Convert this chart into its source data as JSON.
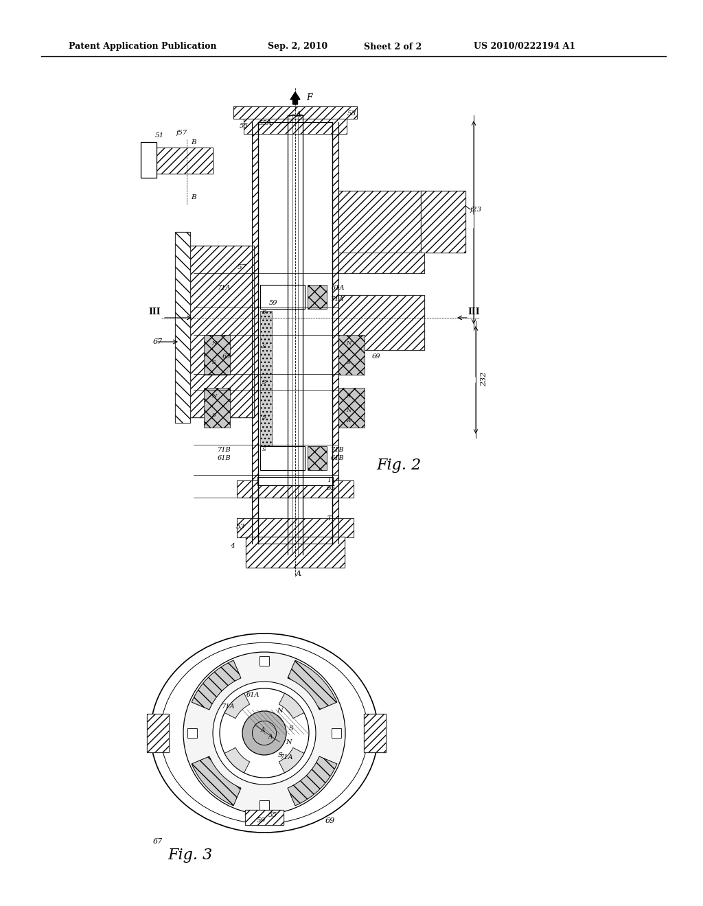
{
  "bg_color": "#ffffff",
  "header_text": "Patent Application Publication",
  "header_date": "Sep. 2, 2010",
  "header_sheet": "Sheet 2 of 2",
  "header_patent": "US 2010/0222194 A1",
  "fig2_label": "Fig. 2",
  "fig3_label": "Fig. 3",
  "line_color": "#000000",
  "hatch_color": "#000000",
  "text_color": "#000000"
}
